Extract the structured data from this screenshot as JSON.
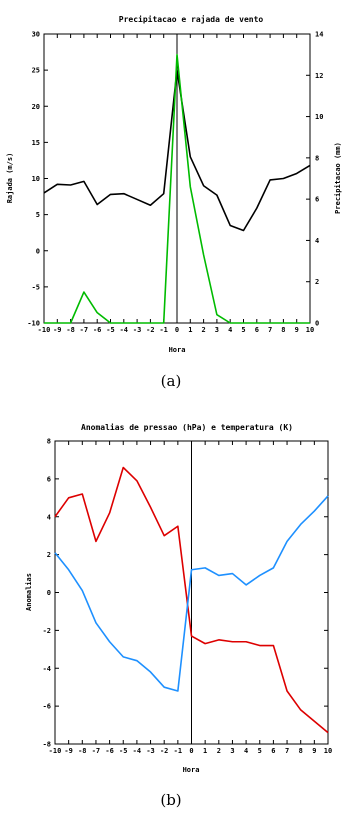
{
  "chart_data": [
    {
      "type": "line",
      "caption": "(a)",
      "title": "Precipitacao e rajada de vento",
      "xlabel": "Hora",
      "ylabel": "Rajada (m/s)",
      "y2label": "Precipitacao (mm)",
      "xlim": [
        -10,
        10
      ],
      "ylim": [
        -10,
        30
      ],
      "y2lim": [
        0,
        14
      ],
      "x_ticks": [
        -10,
        -9,
        -8,
        -7,
        -6,
        -5,
        -4,
        -3,
        -2,
        -1,
        0,
        1,
        2,
        3,
        4,
        5,
        6,
        7,
        8,
        9,
        10
      ],
      "y_ticks": [
        -10,
        -5,
        0,
        5,
        10,
        15,
        20,
        25,
        30
      ],
      "y2_ticks": [
        0,
        2,
        4,
        6,
        8,
        10,
        12,
        14
      ],
      "vline_x": 0,
      "grid": false,
      "x": [
        -10,
        -9,
        -8,
        -7,
        -6,
        -5,
        -4,
        -3,
        -2,
        -1,
        0,
        1,
        2,
        3,
        4,
        5,
        6,
        7,
        8,
        9,
        10
      ],
      "series": [
        {
          "axis": "left",
          "color": "#000000",
          "values": [
            8,
            9.2,
            9.1,
            9.6,
            6.4,
            7.8,
            7.9,
            7.1,
            6.3,
            7.9,
            25,
            13,
            9,
            7.7,
            3.5,
            2.8,
            5.9,
            9.8,
            10,
            10.7,
            11.8
          ]
        },
        {
          "axis": "right",
          "color": "#00bb00",
          "values": [
            0,
            0,
            0,
            1.5,
            0.5,
            0,
            0,
            0,
            0,
            0,
            13,
            6.6,
            3.3,
            0.4,
            0,
            0,
            0,
            0,
            0,
            0,
            0
          ]
        }
      ]
    },
    {
      "type": "line",
      "caption": "(b)",
      "title": "Anomalias de pressao (hPa) e temperatura (K)",
      "xlabel": "Hora",
      "ylabel": "Anomalias",
      "xlim": [
        -10,
        10
      ],
      "ylim": [
        -8,
        8
      ],
      "x_ticks": [
        -10,
        -9,
        -8,
        -7,
        -6,
        -5,
        -4,
        -3,
        -2,
        -1,
        0,
        1,
        2,
        3,
        4,
        5,
        6,
        7,
        8,
        9,
        10
      ],
      "y_ticks": [
        -8,
        -6,
        -4,
        -2,
        0,
        2,
        4,
        6,
        8
      ],
      "vline_x": 0,
      "grid": false,
      "x": [
        -10,
        -9,
        -8,
        -7,
        -6,
        -5,
        -4,
        -3,
        -2,
        -1,
        0,
        1,
        2,
        3,
        4,
        5,
        6,
        7,
        8,
        9,
        10
      ],
      "series": [
        {
          "color": "#dd0000",
          "values": [
            4,
            5,
            5.2,
            2.7,
            4.2,
            6.6,
            5.9,
            4.5,
            3,
            3.5,
            -2.3,
            -2.7,
            -2.5,
            -2.6,
            -2.6,
            -2.8,
            -2.8,
            -5.2,
            -6.2,
            -6.8,
            -7.4
          ]
        },
        {
          "color": "#1e90ff",
          "values": [
            2.1,
            1.2,
            0.1,
            -1.6,
            -2.6,
            -3.4,
            -3.6,
            -4.2,
            -5,
            -5.2,
            1.2,
            1.3,
            0.9,
            1,
            0.4,
            0.9,
            1.3,
            2.7,
            3.6,
            4.3,
            5.1
          ]
        }
      ]
    }
  ]
}
